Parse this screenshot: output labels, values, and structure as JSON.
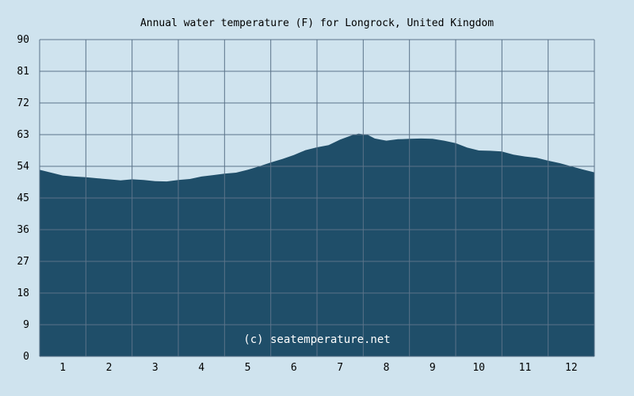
{
  "chart_data": {
    "type": "area",
    "title": "Annual water temperature (F) for Longrock, United Kingdom",
    "xlabel": "",
    "ylabel": "",
    "x_ticks": [
      "1",
      "2",
      "3",
      "4",
      "5",
      "6",
      "7",
      "8",
      "9",
      "10",
      "11",
      "12"
    ],
    "y_ticks": [
      "0",
      "9",
      "18",
      "27",
      "36",
      "45",
      "54",
      "63",
      "72",
      "81",
      "90"
    ],
    "ylim": [
      0,
      90
    ],
    "xlim": [
      0.5,
      12.5
    ],
    "grid": true,
    "watermark": "(c) seatemperature.net",
    "colors": {
      "background": "#cfe3ee",
      "fill": "#1f4e69",
      "grid": "#5b7389"
    },
    "x": [
      0.5,
      0.75,
      1.0,
      1.25,
      1.5,
      1.75,
      2.0,
      2.25,
      2.5,
      2.75,
      3.0,
      3.25,
      3.5,
      3.75,
      4.0,
      4.25,
      4.5,
      4.75,
      5.0,
      5.25,
      5.5,
      5.75,
      6.0,
      6.25,
      6.5,
      6.75,
      7.0,
      7.25,
      7.4,
      7.6,
      7.75,
      8.0,
      8.25,
      8.5,
      8.75,
      9.0,
      9.25,
      9.5,
      9.75,
      10.0,
      10.25,
      10.5,
      10.75,
      11.0,
      11.25,
      11.5,
      11.75,
      12.0,
      12.25,
      12.5
    ],
    "values": [
      53.0,
      52.2,
      51.4,
      51.1,
      50.9,
      50.6,
      50.3,
      50.0,
      50.3,
      50.1,
      49.8,
      49.7,
      50.1,
      50.4,
      51.1,
      51.5,
      51.9,
      52.2,
      53.0,
      54.0,
      55.1,
      56.1,
      57.2,
      58.6,
      59.4,
      60.0,
      61.6,
      62.8,
      63.3,
      62.9,
      61.9,
      61.3,
      61.7,
      61.8,
      61.9,
      61.8,
      61.3,
      60.6,
      59.3,
      58.5,
      58.4,
      58.2,
      57.3,
      56.8,
      56.4,
      55.6,
      54.9,
      54.0,
      53.1,
      52.3
    ]
  }
}
